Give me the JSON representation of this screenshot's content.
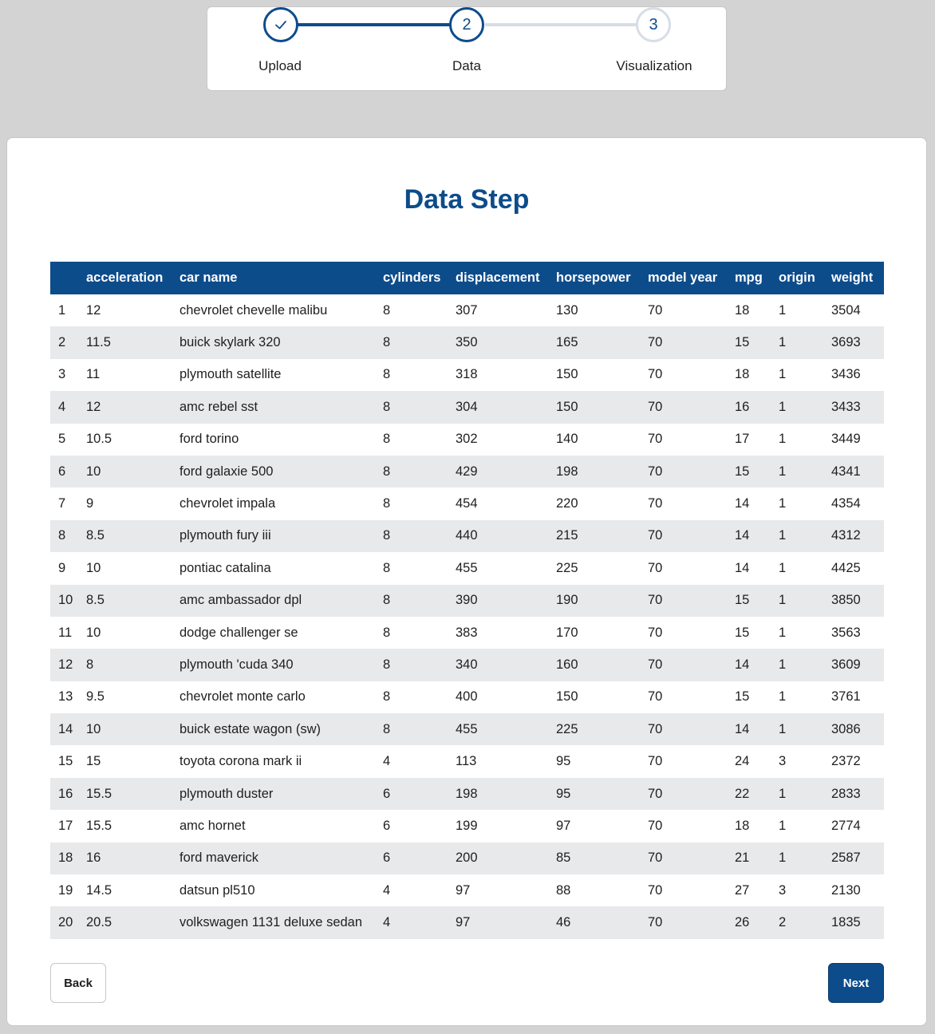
{
  "stepper": {
    "steps": [
      {
        "label": "Upload",
        "marker": "check-icon"
      },
      {
        "label": "Data",
        "marker": "2"
      },
      {
        "label": "Visualization",
        "marker": "3"
      }
    ]
  },
  "main": {
    "title": "Data Step",
    "table": {
      "headers": [
        "",
        "acceleration",
        "car name",
        "cylinders",
        "displacement",
        "horsepower",
        "model year",
        "mpg",
        "origin",
        "weight"
      ],
      "rows": [
        [
          "1",
          "12",
          "chevrolet chevelle malibu",
          "8",
          "307",
          "130",
          "70",
          "18",
          "1",
          "3504"
        ],
        [
          "2",
          "11.5",
          "buick skylark 320",
          "8",
          "350",
          "165",
          "70",
          "15",
          "1",
          "3693"
        ],
        [
          "3",
          "11",
          "plymouth satellite",
          "8",
          "318",
          "150",
          "70",
          "18",
          "1",
          "3436"
        ],
        [
          "4",
          "12",
          "amc rebel sst",
          "8",
          "304",
          "150",
          "70",
          "16",
          "1",
          "3433"
        ],
        [
          "5",
          "10.5",
          "ford torino",
          "8",
          "302",
          "140",
          "70",
          "17",
          "1",
          "3449"
        ],
        [
          "6",
          "10",
          "ford galaxie 500",
          "8",
          "429",
          "198",
          "70",
          "15",
          "1",
          "4341"
        ],
        [
          "7",
          "9",
          "chevrolet impala",
          "8",
          "454",
          "220",
          "70",
          "14",
          "1",
          "4354"
        ],
        [
          "8",
          "8.5",
          "plymouth fury iii",
          "8",
          "440",
          "215",
          "70",
          "14",
          "1",
          "4312"
        ],
        [
          "9",
          "10",
          "pontiac catalina",
          "8",
          "455",
          "225",
          "70",
          "14",
          "1",
          "4425"
        ],
        [
          "10",
          "8.5",
          "amc ambassador dpl",
          "8",
          "390",
          "190",
          "70",
          "15",
          "1",
          "3850"
        ],
        [
          "11",
          "10",
          "dodge challenger se",
          "8",
          "383",
          "170",
          "70",
          "15",
          "1",
          "3563"
        ],
        [
          "12",
          "8",
          "plymouth 'cuda 340",
          "8",
          "340",
          "160",
          "70",
          "14",
          "1",
          "3609"
        ],
        [
          "13",
          "9.5",
          "chevrolet monte carlo",
          "8",
          "400",
          "150",
          "70",
          "15",
          "1",
          "3761"
        ],
        [
          "14",
          "10",
          "buick estate wagon (sw)",
          "8",
          "455",
          "225",
          "70",
          "14",
          "1",
          "3086"
        ],
        [
          "15",
          "15",
          "toyota corona mark ii",
          "4",
          "113",
          "95",
          "70",
          "24",
          "3",
          "2372"
        ],
        [
          "16",
          "15.5",
          "plymouth duster",
          "6",
          "198",
          "95",
          "70",
          "22",
          "1",
          "2833"
        ],
        [
          "17",
          "15.5",
          "amc hornet",
          "6",
          "199",
          "97",
          "70",
          "18",
          "1",
          "2774"
        ],
        [
          "18",
          "16",
          "ford maverick",
          "6",
          "200",
          "85",
          "70",
          "21",
          "1",
          "2587"
        ],
        [
          "19",
          "14.5",
          "datsun pl510",
          "4",
          "97",
          "88",
          "70",
          "27",
          "3",
          "2130"
        ],
        [
          "20",
          "20.5",
          "volkswagen 1131 deluxe sedan",
          "4",
          "97",
          "46",
          "70",
          "26",
          "2",
          "1835"
        ]
      ]
    },
    "back_label": "Back",
    "next_label": "Next"
  },
  "colors": {
    "primary": "#0d4c8b",
    "row_alt": "#e8e9eb",
    "background": "#d3d3d3"
  }
}
